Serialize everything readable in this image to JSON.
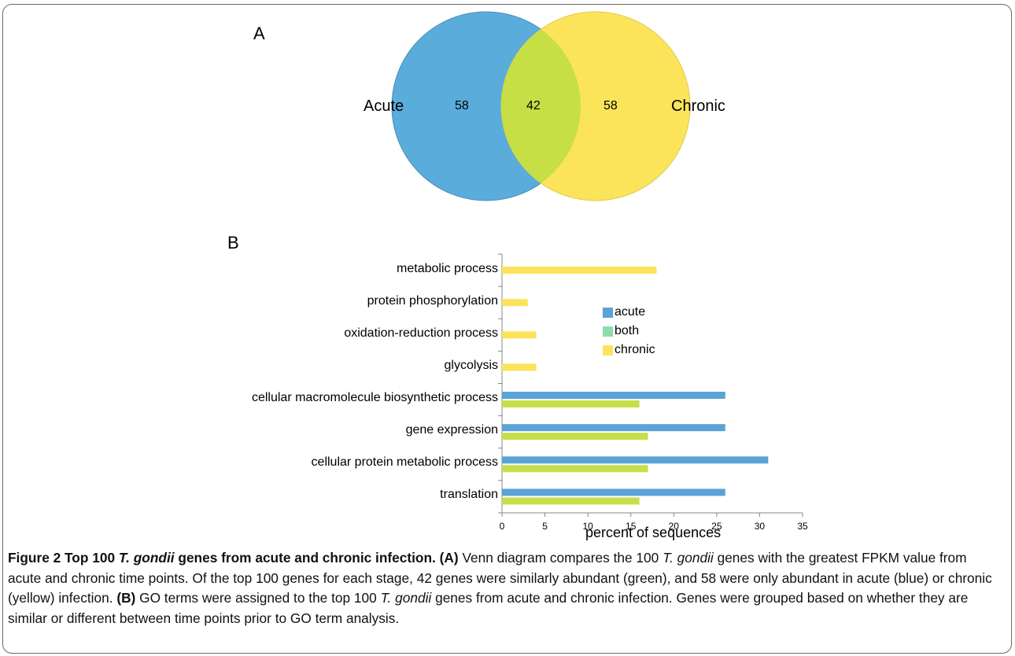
{
  "panel_a": {
    "letter": "A",
    "left_label": "Acute",
    "right_label": "Chronic",
    "counts": {
      "acute_only": "58",
      "both": "42",
      "chronic_only": "58"
    },
    "colors": {
      "acute": "#5aacdb",
      "chronic": "#fbe45a",
      "overlap": "#c6df45"
    }
  },
  "panel_b": {
    "letter": "B"
  },
  "chart_data": {
    "type": "bar",
    "orientation": "horizontal",
    "xlabel": "percent of sequences",
    "xlim": [
      0,
      35
    ],
    "xticks": [
      "0",
      "5",
      "10",
      "15",
      "20",
      "25",
      "30",
      "35"
    ],
    "categories": [
      "metabolic process",
      "protein phosphorylation",
      "oxidation-reduction process",
      "glycolysis",
      "cellular macromolecule biosynthetic process",
      "gene expression",
      "cellular protein metabolic process",
      "translation"
    ],
    "series": [
      {
        "name": "acute",
        "color": "#5aa3d6",
        "values": [
          0,
          0,
          0,
          0,
          26,
          26,
          31,
          26
        ]
      },
      {
        "name": "both",
        "color": "#c8de49",
        "values": [
          0,
          0,
          0,
          0,
          16,
          17,
          17,
          16
        ]
      },
      {
        "name": "chronic",
        "color": "#fbe45a",
        "values": [
          18,
          3,
          4,
          4,
          0,
          0,
          0,
          0
        ]
      }
    ],
    "legend": {
      "position": "center-right",
      "entries": [
        {
          "label": "acute",
          "color": "#5aa3d6"
        },
        {
          "label": "both",
          "color": "#8fdcaa"
        },
        {
          "label": "chronic",
          "color": "#fbe45a"
        }
      ]
    },
    "grid": false
  },
  "caption": {
    "figure_label": "Figure 2",
    "title_part1": "Top 100",
    "title_species": "T. gondii",
    "title_part2": "genes from acute and chronic infection.",
    "a_label": "(A)",
    "a_text_1": "Venn diagram compares the 100",
    "a_species_1": "T. gondii",
    "a_text_2": "genes with the greatest FPKM value from acute and chronic time points. Of the top 100 genes for each stage, 42 genes were similarly abundant (green), and 58 were only abundant in acute (blue) or chronic (yellow) infection.",
    "b_label": "(B)",
    "b_text_1": "GO terms were assigned to the top 100",
    "b_species": "T. gondii",
    "b_text_2": "genes from acute and chronic infection. Genes were grouped based on whether they are similar or different between time points prior to GO term analysis."
  }
}
